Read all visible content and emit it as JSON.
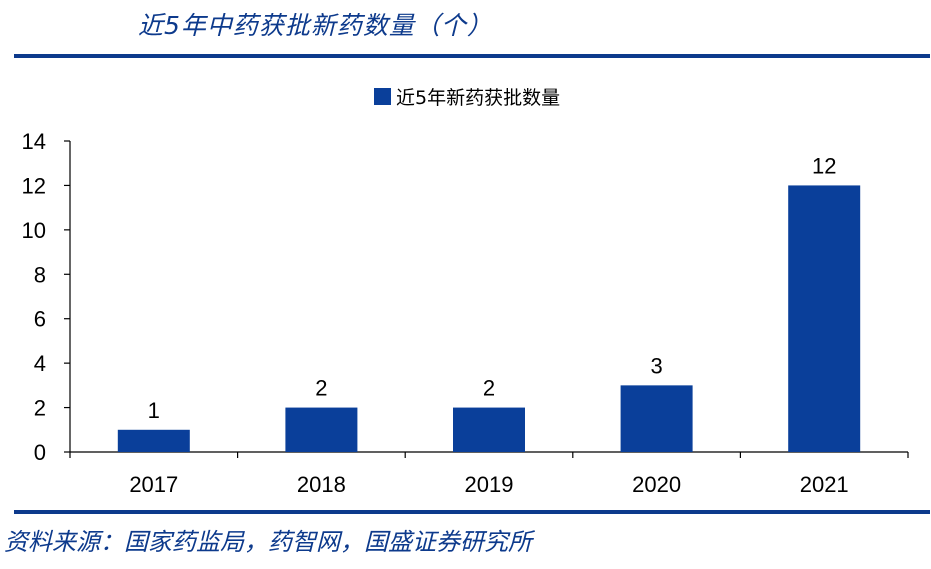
{
  "header": {
    "title": "近5年中药获批新药数量（个）"
  },
  "footer": {
    "source": "资料来源：国家药监局，药智网，国盛证券研究所"
  },
  "colors": {
    "accent": "#0D3A8C",
    "bar": "#0A3F9A"
  },
  "chart_data": {
    "type": "bar",
    "title": "",
    "xlabel": "",
    "ylabel": "",
    "categories": [
      "2017",
      "2018",
      "2019",
      "2020",
      "2021"
    ],
    "series": [
      {
        "name": "近5年新药获批数量",
        "values": [
          1,
          2,
          2,
          3,
          12
        ]
      }
    ],
    "ylim": [
      0,
      14
    ],
    "yticks": [
      0,
      2,
      4,
      6,
      8,
      10,
      12,
      14
    ],
    "data_labels": true,
    "legend_position": "top-center",
    "grid": false
  }
}
